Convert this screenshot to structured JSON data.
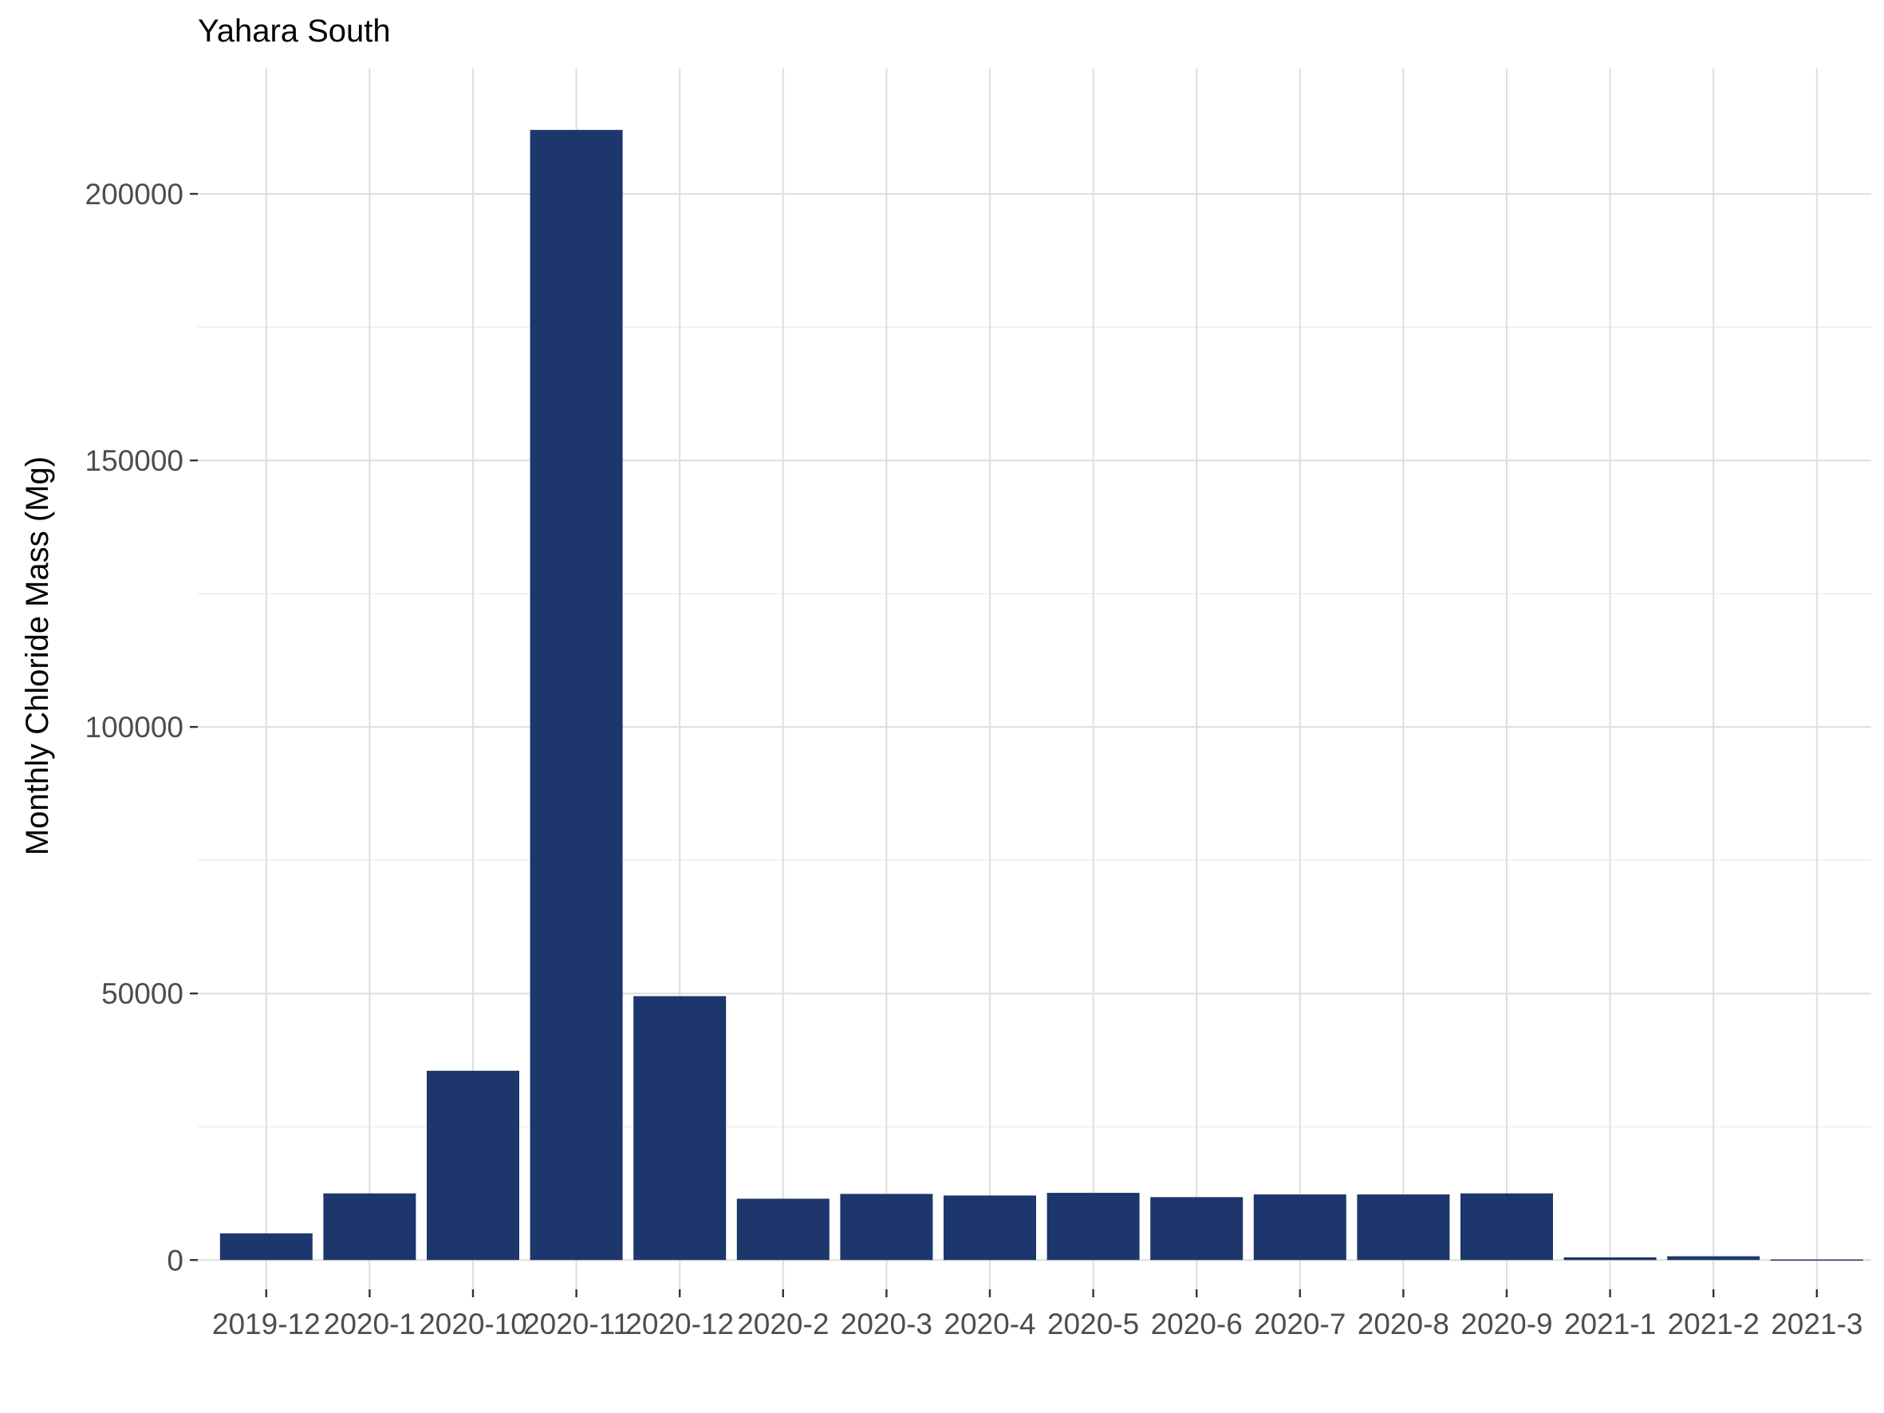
{
  "chart_data": {
    "type": "bar",
    "title": "Yahara South",
    "xlabel": "",
    "ylabel": "Monthly Chloride Mass  (Mg)",
    "categories": [
      "2019-12",
      "2020-1",
      "2020-10",
      "2020-11",
      "2020-12",
      "2020-2",
      "2020-3",
      "2020-4",
      "2020-5",
      "2020-6",
      "2020-7",
      "2020-8",
      "2020-9",
      "2021-1",
      "2021-2",
      "2021-3"
    ],
    "values": [
      5000,
      12500,
      35500,
      212000,
      49500,
      11500,
      12400,
      12100,
      12600,
      11800,
      12300,
      12300,
      12500,
      500,
      700,
      100
    ],
    "ylim": [
      -5500,
      223500
    ],
    "yticks": [
      0,
      50000,
      100000,
      150000,
      200000
    ],
    "bar_color": "#1d366b",
    "grid": true,
    "legend": "none"
  }
}
